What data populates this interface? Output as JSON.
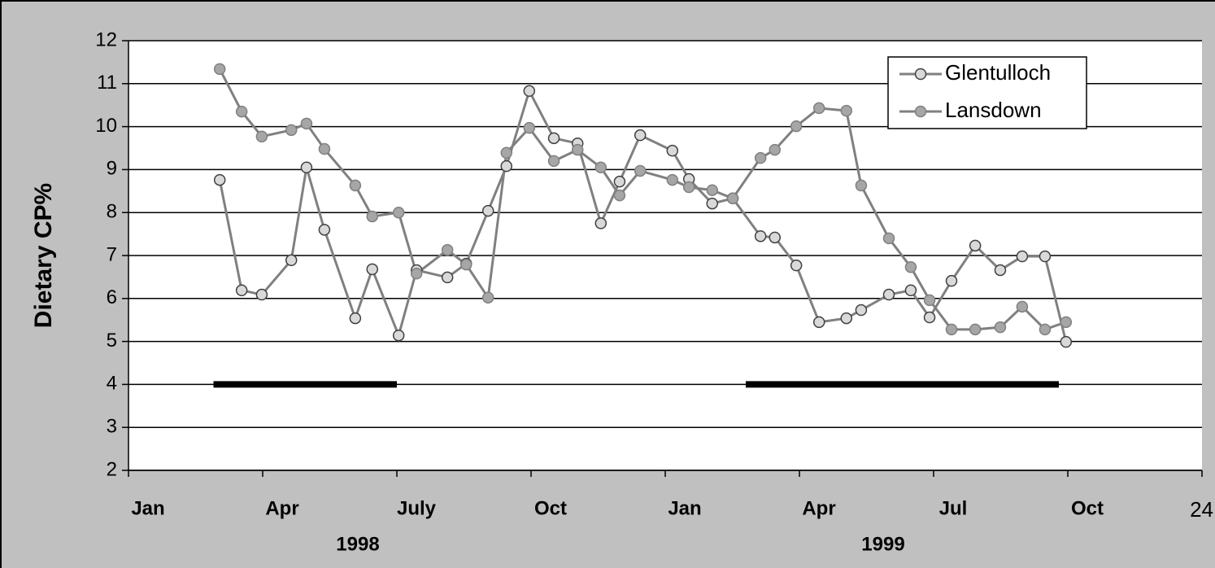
{
  "chart_data": {
    "type": "line",
    "y_label": "Dietary CP%",
    "xlim": [
      0,
      24
    ],
    "ylim": [
      2,
      12
    ],
    "yticks": [
      2,
      3,
      4,
      5,
      6,
      7,
      8,
      9,
      10,
      11,
      12
    ],
    "xticks": [
      {
        "value": 0,
        "label": "Jan"
      },
      {
        "value": 3,
        "label": "Apr"
      },
      {
        "value": 6,
        "label": "July"
      },
      {
        "value": 9,
        "label": "Oct"
      },
      {
        "value": 12,
        "label": "Jan"
      },
      {
        "value": 15,
        "label": "Apr"
      },
      {
        "value": 18,
        "label": "Jul"
      },
      {
        "value": 21,
        "label": "Oct"
      },
      24
    ],
    "years": [
      "1998",
      "1999"
    ],
    "grid": true,
    "legend": "top-right",
    "x": [
      2.04,
      2.53,
      2.98,
      3.64,
      3.98,
      4.38,
      5.07,
      5.45,
      6.04,
      6.44,
      7.13,
      7.55,
      8.04,
      8.45,
      8.96,
      9.51,
      10.04,
      10.56,
      10.98,
      11.44,
      12.16,
      12.53,
      13.05,
      13.51,
      14.13,
      14.45,
      14.93,
      15.44,
      16.05,
      16.38,
      17.0,
      17.49,
      17.91,
      18.4,
      18.93,
      19.49,
      19.98,
      20.49,
      20.96
    ],
    "series": [
      {
        "name": "Glentulloch",
        "color": "#d9d9d9",
        "values": [
          8.76,
          6.19,
          6.09,
          6.89,
          9.05,
          7.6,
          5.54,
          6.68,
          5.14,
          6.66,
          6.49,
          6.81,
          8.04,
          9.08,
          10.83,
          9.73,
          9.61,
          7.75,
          8.72,
          9.8,
          9.44,
          8.78,
          8.21,
          8.33,
          7.45,
          7.42,
          6.77,
          5.45,
          5.54,
          5.73,
          6.09,
          6.19,
          5.56,
          6.41,
          7.23,
          6.66,
          6.98,
          6.98,
          4.99
        ]
      },
      {
        "name": "Lansdown",
        "color": "#a6a6a6",
        "values": [
          11.34,
          10.35,
          9.77,
          9.92,
          10.07,
          9.48,
          8.63,
          7.91,
          8.0,
          6.58,
          7.13,
          6.79,
          6.02,
          9.39,
          9.97,
          9.2,
          9.46,
          9.05,
          8.4,
          8.97,
          8.76,
          8.59,
          8.52,
          8.33,
          9.27,
          9.46,
          10.01,
          10.43,
          10.37,
          8.63,
          7.4,
          6.73,
          5.96,
          5.28,
          5.28,
          5.33,
          5.81,
          5.28,
          5.45
        ]
      }
    ],
    "bars": [
      {
        "x": [
          1.9,
          6.0
        ],
        "y": 4
      },
      {
        "x": [
          13.8,
          20.8
        ],
        "y": 4
      }
    ]
  }
}
